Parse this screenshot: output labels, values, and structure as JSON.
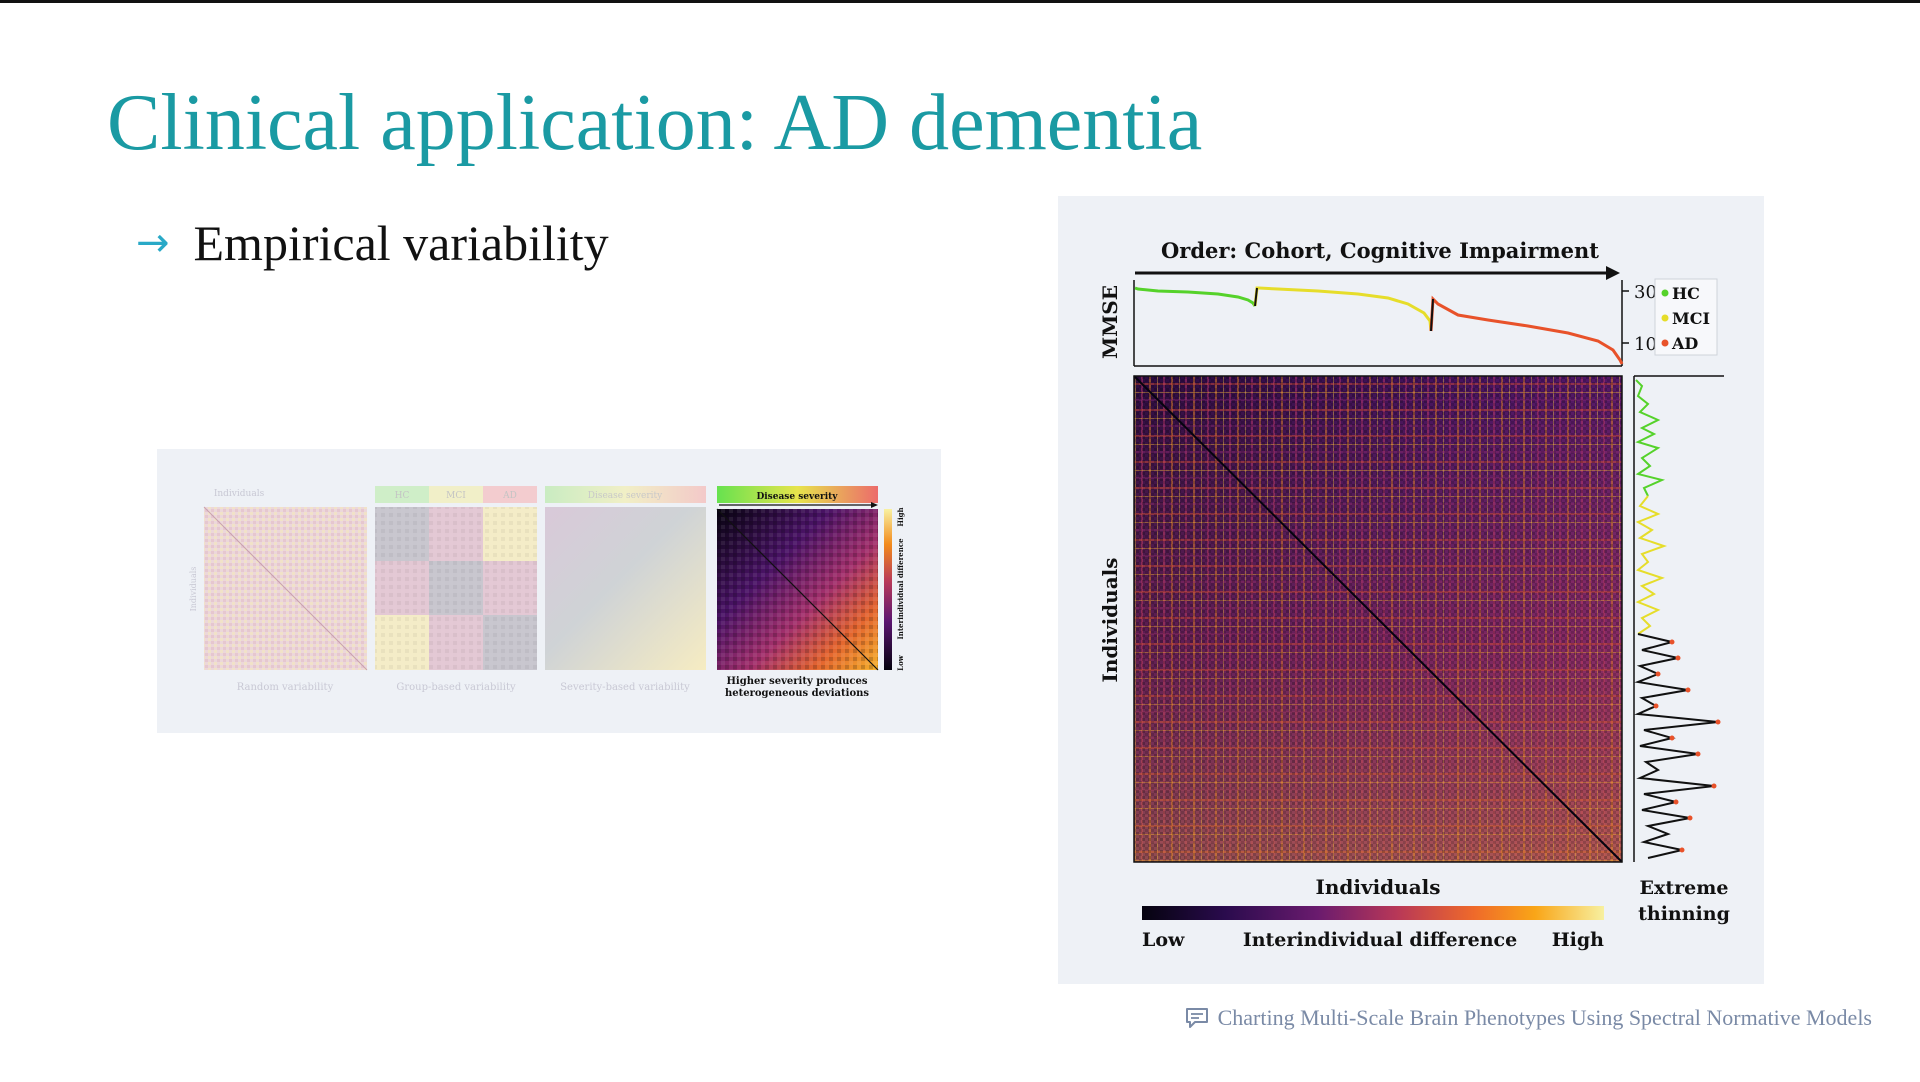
{
  "slide": {
    "title": "Clinical application: AD dementia",
    "bullet_arrow": "→",
    "bullet_text": "Empirical variability",
    "caption_icon": "comment-icon",
    "caption": "Charting Multi-Scale Brain Phenotypes Using Spectral Normative Models"
  },
  "left_figure": {
    "panels": [
      {
        "top_label": "Individuals",
        "bottom_label": "Random variability",
        "side_label": "Individuals"
      },
      {
        "groups": [
          "HC",
          "MCI",
          "AD"
        ],
        "bottom_label": "Group-based variability"
      },
      {
        "top_label": "Disease severity",
        "bottom_label": "Severity-based variability"
      },
      {
        "top_label": "Disease severity",
        "bottom_label_line1": "Higher severity produces",
        "bottom_label_line2": "heterogeneous deviations",
        "colorbar": {
          "high": "High",
          "low": "Low",
          "label": "Interindividual difference"
        }
      }
    ]
  },
  "right_figure": {
    "order_label": "Order: Cohort, Cognitive Impairment",
    "mmse_label": "MMSE",
    "mmse_ticks": [
      "30",
      "10"
    ],
    "legend": [
      {
        "name": "HC",
        "color": "#55d22a"
      },
      {
        "name": "MCI",
        "color": "#e6dd2a"
      },
      {
        "name": "AD",
        "color": "#e8522a"
      }
    ],
    "y_label": "Individuals",
    "x_label": "Individuals",
    "side_label_line1": "Extreme",
    "side_label_line2": "thinning",
    "colorbar": {
      "low": "Low",
      "mid": "Interindividual difference",
      "high": "High"
    }
  }
}
